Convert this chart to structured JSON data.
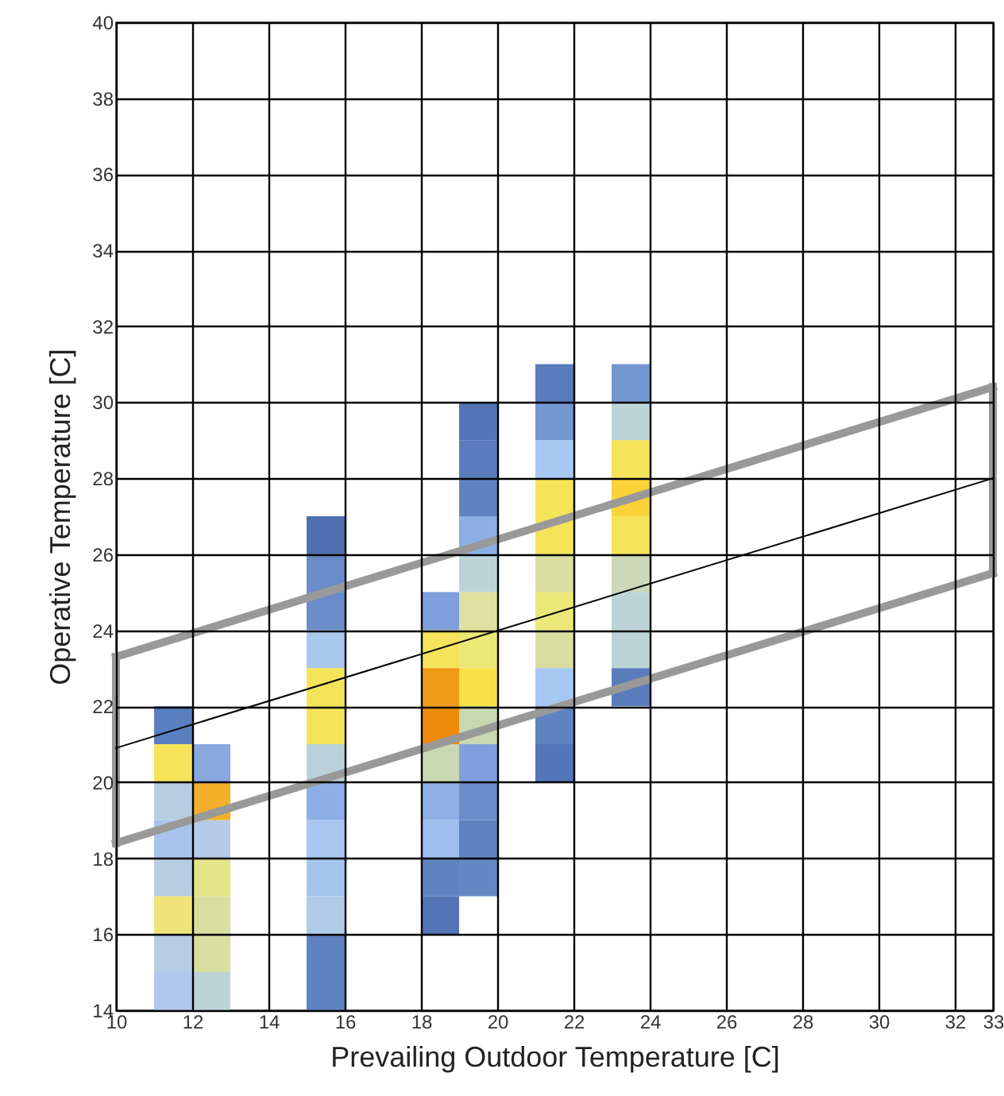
{
  "chart_data": {
    "type": "scatter",
    "xlabel": "Prevailing Outdoor Temperature [C]",
    "ylabel": "Operative Temperature [C]",
    "xlim": [
      10,
      33
    ],
    "xticks": [
      10,
      12,
      14,
      16,
      18,
      20,
      22,
      24,
      26,
      28,
      30,
      32,
      33
    ],
    "ylim": [
      14,
      40
    ],
    "yticks": [
      14,
      16,
      18,
      20,
      22,
      24,
      26,
      28,
      30,
      32,
      34,
      36,
      38,
      40
    ],
    "grid": true,
    "series": [
      {
        "type": "scatter",
        "marker": "square",
        "x": [
          11.5,
          11.5,
          11.5,
          11.5,
          11.5,
          11.5,
          11.5,
          11.5,
          12.5,
          12.5,
          12.5,
          12.5,
          12.5,
          12.5,
          12.5,
          15.5,
          15.5,
          15.5,
          15.5,
          15.5,
          15.5,
          15.5,
          15.5,
          15.5,
          15.5,
          15.5,
          15.5,
          15.5,
          18.5,
          18.5,
          18.5,
          18.5,
          18.5,
          18.5,
          18.5,
          18.5,
          18.5,
          19.5,
          19.5,
          19.5,
          19.5,
          19.5,
          19.5,
          19.5,
          19.5,
          19.5,
          19.5,
          19.5,
          19.5,
          19.5,
          21.5,
          21.5,
          21.5,
          21.5,
          21.5,
          21.5,
          21.5,
          21.5,
          21.5,
          21.5,
          21.5,
          23.5,
          23.5,
          23.5,
          23.5,
          23.5,
          23.5,
          23.5,
          23.5,
          23.5
        ],
        "values": [
          21.5,
          20.5,
          19.5,
          18.5,
          17.5,
          16.5,
          15.5,
          14.5,
          20.5,
          19.5,
          18.5,
          17.5,
          16.5,
          15.5,
          14.5,
          26.5,
          25.5,
          24.5,
          23.5,
          22.5,
          21.5,
          20.5,
          19.5,
          18.5,
          17.5,
          16.5,
          15.5,
          14.5,
          24.5,
          23.5,
          22.5,
          21.5,
          20.5,
          19.5,
          18.5,
          17.5,
          16.5,
          29.5,
          28.5,
          27.5,
          26.5,
          25.5,
          24.5,
          23.5,
          22.5,
          21.5,
          20.5,
          19.5,
          18.5,
          17.5,
          30.5,
          29.5,
          28.5,
          27.5,
          26.5,
          25.5,
          24.5,
          23.5,
          22.5,
          21.5,
          20.5,
          30.5,
          29.5,
          28.5,
          27.5,
          26.5,
          25.5,
          24.5,
          23.5,
          22.5
        ],
        "colors": [
          "#5a7fbf",
          "#f5e35a",
          "#b7cde0",
          "#a8c4ec",
          "#b7cde0",
          "#eee47a",
          "#b7cde6",
          "#b0c8ec",
          "#8aa8e0",
          "#f2b02a",
          "#b6cce6",
          "#e4e488",
          "#d8dea0",
          "#d8dea0",
          "#bcd4d8",
          "#4f6fb0",
          "#6a8cc8",
          "#6a8cc8",
          "#a8c8ec",
          "#f5e45a",
          "#f5e45a",
          "#b9d2d9",
          "#8eaee6",
          "#a8c6f0",
          "#a4c4f0",
          "#b0cce8",
          "#5f82c0",
          "#5f82c0",
          "#7fa0dc",
          "#f5e45a",
          "#f09a1a",
          "#ef8a0a",
          "#c8d8b0",
          "#8eb0e6",
          "#9ebeee",
          "#5f82c0",
          "#5474b8",
          "#5474b8",
          "#5a7cbc",
          "#5f82c0",
          "#8eaee6",
          "#bcd4d8",
          "#dde2a0",
          "#ece878",
          "#fae048",
          "#c8d8b0",
          "#7fa0dc",
          "#6a8cc8",
          "#5f82c0",
          "#6488c4",
          "#5a7cbc",
          "#7496d0",
          "#a8c8f4",
          "#f5e45a",
          "#f5e45a",
          "#d8dea0",
          "#ece878",
          "#d8dea0",
          "#a8c8f4",
          "#5f82c0",
          "#5474b8",
          "#7496d0",
          "#bcd4d8",
          "#f5e45a",
          "#fad23a",
          "#f5e45a",
          "#cdd8b8",
          "#bcd4d8",
          "#bcd4d8",
          "#5a7cbc"
        ]
      },
      {
        "type": "line",
        "x": [
          10,
          33
        ],
        "values": [
          23.3,
          30.4
        ],
        "color": "#999999"
      },
      {
        "type": "line",
        "x": [
          10,
          33
        ],
        "values": [
          18.4,
          25.5
        ],
        "color": "#999999"
      },
      {
        "type": "line",
        "x": [
          10,
          10
        ],
        "values": [
          18.4,
          23.3
        ],
        "color": "#999999"
      },
      {
        "type": "line",
        "x": [
          33,
          33
        ],
        "values": [
          25.5,
          30.4
        ],
        "color": "#999999"
      },
      {
        "type": "line",
        "x": [
          10,
          33
        ],
        "values": [
          20.9,
          28.0
        ],
        "color": "#000000"
      }
    ]
  }
}
